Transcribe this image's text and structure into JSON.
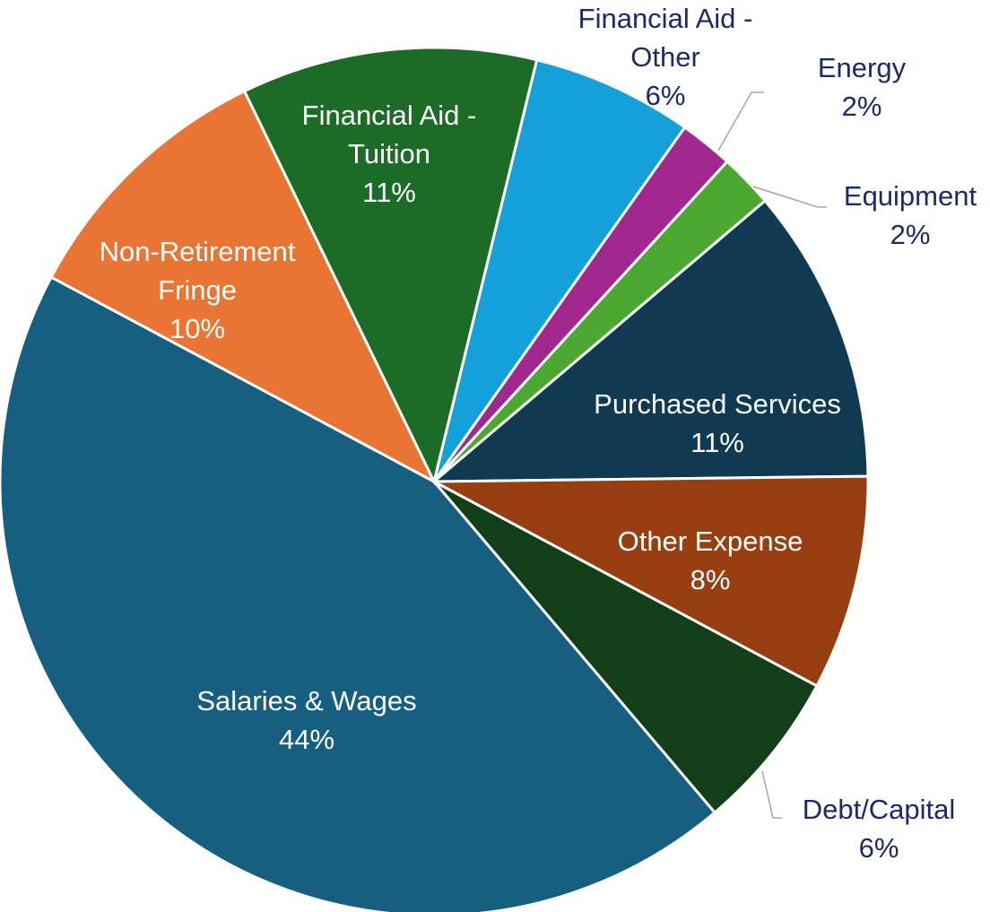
{
  "chart_data": {
    "type": "pie",
    "categories": [
      "Financial Aid - Other",
      "Energy",
      "Equipment",
      "Purchased Services",
      "Other Expense",
      "Debt/Capital",
      "Salaries & Wages",
      "Non-Retirement Fringe",
      "Financial Aid - Tuition"
    ],
    "values": [
      6,
      2,
      2,
      11,
      8,
      6,
      44,
      10,
      11
    ],
    "value_labels": [
      "6%",
      "2%",
      "2%",
      "11%",
      "8%",
      "6%",
      "44%",
      "10%",
      "11%"
    ],
    "colors": [
      "#14a0d8",
      "#a0288f",
      "#4da832",
      "#0f3a52",
      "#983f12",
      "#123f18",
      "#175f81",
      "#e97534",
      "#1c6b26"
    ]
  }
}
